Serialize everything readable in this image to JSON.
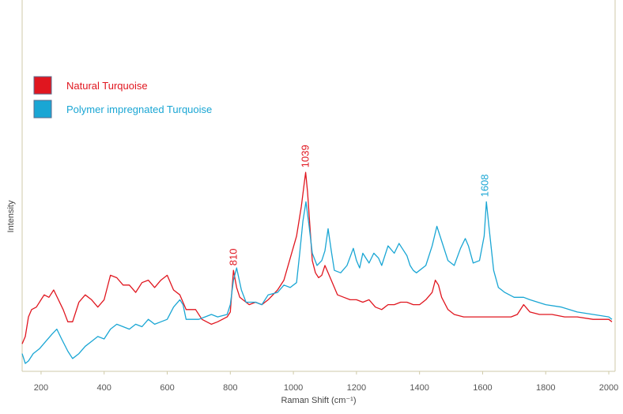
{
  "chart_data": {
    "type": "line",
    "title": "",
    "xlabel": "Raman Shift (cm⁻¹)",
    "ylabel": "Intensity",
    "xlim": [
      140,
      2020
    ],
    "ylim": [
      0,
      100
    ],
    "xticks": [
      200,
      400,
      600,
      800,
      1000,
      1200,
      1400,
      1600,
      1800,
      2000
    ],
    "grid": false,
    "legend_position": "top-left",
    "series": [
      {
        "name": "Natural Turquoise",
        "color": "#e0161f",
        "points": [
          [
            140,
            8
          ],
          [
            150,
            11
          ],
          [
            160,
            19
          ],
          [
            170,
            22
          ],
          [
            185,
            23
          ],
          [
            200,
            26
          ],
          [
            210,
            28
          ],
          [
            225,
            27
          ],
          [
            240,
            30
          ],
          [
            255,
            26
          ],
          [
            270,
            22
          ],
          [
            285,
            17
          ],
          [
            300,
            17
          ],
          [
            320,
            25
          ],
          [
            340,
            28
          ],
          [
            360,
            26
          ],
          [
            380,
            23
          ],
          [
            400,
            26
          ],
          [
            420,
            36
          ],
          [
            440,
            35
          ],
          [
            460,
            32
          ],
          [
            480,
            32
          ],
          [
            500,
            29
          ],
          [
            520,
            33
          ],
          [
            540,
            34
          ],
          [
            560,
            31
          ],
          [
            580,
            34
          ],
          [
            600,
            36
          ],
          [
            620,
            30
          ],
          [
            640,
            28
          ],
          [
            660,
            22
          ],
          [
            690,
            22
          ],
          [
            710,
            18
          ],
          [
            740,
            16
          ],
          [
            760,
            17
          ],
          [
            790,
            19
          ],
          [
            800,
            21
          ],
          [
            810,
            38
          ],
          [
            820,
            31
          ],
          [
            830,
            27
          ],
          [
            860,
            24
          ],
          [
            880,
            25
          ],
          [
            900,
            24
          ],
          [
            920,
            26
          ],
          [
            950,
            30
          ],
          [
            970,
            34
          ],
          [
            990,
            43
          ],
          [
            1010,
            52
          ],
          [
            1025,
            64
          ],
          [
            1035,
            74
          ],
          [
            1039,
            78
          ],
          [
            1045,
            70
          ],
          [
            1060,
            42
          ],
          [
            1070,
            37
          ],
          [
            1080,
            35
          ],
          [
            1090,
            36
          ],
          [
            1100,
            40
          ],
          [
            1110,
            37
          ],
          [
            1120,
            34
          ],
          [
            1140,
            28
          ],
          [
            1160,
            27
          ],
          [
            1180,
            26
          ],
          [
            1200,
            26
          ],
          [
            1220,
            25
          ],
          [
            1240,
            26
          ],
          [
            1260,
            23
          ],
          [
            1280,
            22
          ],
          [
            1300,
            24
          ],
          [
            1320,
            24
          ],
          [
            1340,
            25
          ],
          [
            1360,
            25
          ],
          [
            1380,
            24
          ],
          [
            1400,
            24
          ],
          [
            1420,
            26
          ],
          [
            1440,
            29
          ],
          [
            1450,
            34
          ],
          [
            1460,
            32
          ],
          [
            1470,
            27
          ],
          [
            1490,
            22
          ],
          [
            1510,
            20
          ],
          [
            1540,
            19
          ],
          [
            1570,
            19
          ],
          [
            1600,
            19
          ],
          [
            1630,
            19
          ],
          [
            1660,
            19
          ],
          [
            1690,
            19
          ],
          [
            1710,
            20
          ],
          [
            1730,
            24
          ],
          [
            1750,
            21
          ],
          [
            1780,
            20
          ],
          [
            1820,
            20
          ],
          [
            1860,
            19
          ],
          [
            1900,
            19
          ],
          [
            1950,
            18
          ],
          [
            2000,
            18
          ],
          [
            2010,
            17
          ]
        ]
      },
      {
        "name": "Polymer impregnated Turquoise",
        "color": "#1aa6d4",
        "points": [
          [
            140,
            4
          ],
          [
            150,
            0
          ],
          [
            160,
            1
          ],
          [
            175,
            4
          ],
          [
            195,
            6
          ],
          [
            215,
            9
          ],
          [
            235,
            12
          ],
          [
            250,
            14
          ],
          [
            265,
            10
          ],
          [
            285,
            5
          ],
          [
            300,
            2
          ],
          [
            320,
            4
          ],
          [
            340,
            7
          ],
          [
            360,
            9
          ],
          [
            380,
            11
          ],
          [
            400,
            10
          ],
          [
            420,
            14
          ],
          [
            440,
            16
          ],
          [
            460,
            15
          ],
          [
            480,
            14
          ],
          [
            500,
            16
          ],
          [
            520,
            15
          ],
          [
            540,
            18
          ],
          [
            560,
            16
          ],
          [
            580,
            17
          ],
          [
            600,
            18
          ],
          [
            620,
            23
          ],
          [
            640,
            26
          ],
          [
            650,
            24
          ],
          [
            660,
            18
          ],
          [
            680,
            18
          ],
          [
            700,
            18
          ],
          [
            720,
            19
          ],
          [
            740,
            20
          ],
          [
            760,
            19
          ],
          [
            790,
            20
          ],
          [
            800,
            24
          ],
          [
            810,
            34
          ],
          [
            820,
            39
          ],
          [
            835,
            30
          ],
          [
            850,
            25
          ],
          [
            880,
            25
          ],
          [
            900,
            24
          ],
          [
            920,
            28
          ],
          [
            950,
            29
          ],
          [
            970,
            32
          ],
          [
            990,
            31
          ],
          [
            1010,
            33
          ],
          [
            1020,
            45
          ],
          [
            1030,
            58
          ],
          [
            1040,
            66
          ],
          [
            1050,
            56
          ],
          [
            1060,
            45
          ],
          [
            1075,
            40
          ],
          [
            1090,
            42
          ],
          [
            1100,
            46
          ],
          [
            1110,
            55
          ],
          [
            1120,
            46
          ],
          [
            1130,
            38
          ],
          [
            1150,
            37
          ],
          [
            1170,
            40
          ],
          [
            1190,
            47
          ],
          [
            1200,
            42
          ],
          [
            1210,
            39
          ],
          [
            1220,
            45
          ],
          [
            1240,
            41
          ],
          [
            1255,
            45
          ],
          [
            1270,
            43
          ],
          [
            1280,
            40
          ],
          [
            1300,
            48
          ],
          [
            1320,
            45
          ],
          [
            1335,
            49
          ],
          [
            1345,
            47
          ],
          [
            1360,
            44
          ],
          [
            1370,
            40
          ],
          [
            1380,
            38
          ],
          [
            1390,
            37
          ],
          [
            1400,
            38
          ],
          [
            1420,
            40
          ],
          [
            1440,
            48
          ],
          [
            1455,
            56
          ],
          [
            1470,
            50
          ],
          [
            1490,
            42
          ],
          [
            1510,
            40
          ],
          [
            1530,
            47
          ],
          [
            1545,
            51
          ],
          [
            1555,
            48
          ],
          [
            1570,
            41
          ],
          [
            1590,
            42
          ],
          [
            1605,
            52
          ],
          [
            1612,
            66
          ],
          [
            1620,
            56
          ],
          [
            1635,
            38
          ],
          [
            1650,
            31
          ],
          [
            1670,
            29
          ],
          [
            1700,
            27
          ],
          [
            1730,
            27
          ],
          [
            1750,
            26
          ],
          [
            1800,
            24
          ],
          [
            1850,
            23
          ],
          [
            1900,
            21
          ],
          [
            1950,
            20
          ],
          [
            2000,
            19
          ],
          [
            2010,
            18
          ]
        ]
      }
    ],
    "annotations": [
      {
        "x": 810,
        "y": 38,
        "text": "810",
        "color": "#e0161f"
      },
      {
        "x": 1039,
        "y": 78,
        "text": "1039",
        "color": "#e0161f"
      },
      {
        "x": 1608,
        "y": 66,
        "text": "1608",
        "color": "#1aa6d4"
      }
    ]
  }
}
